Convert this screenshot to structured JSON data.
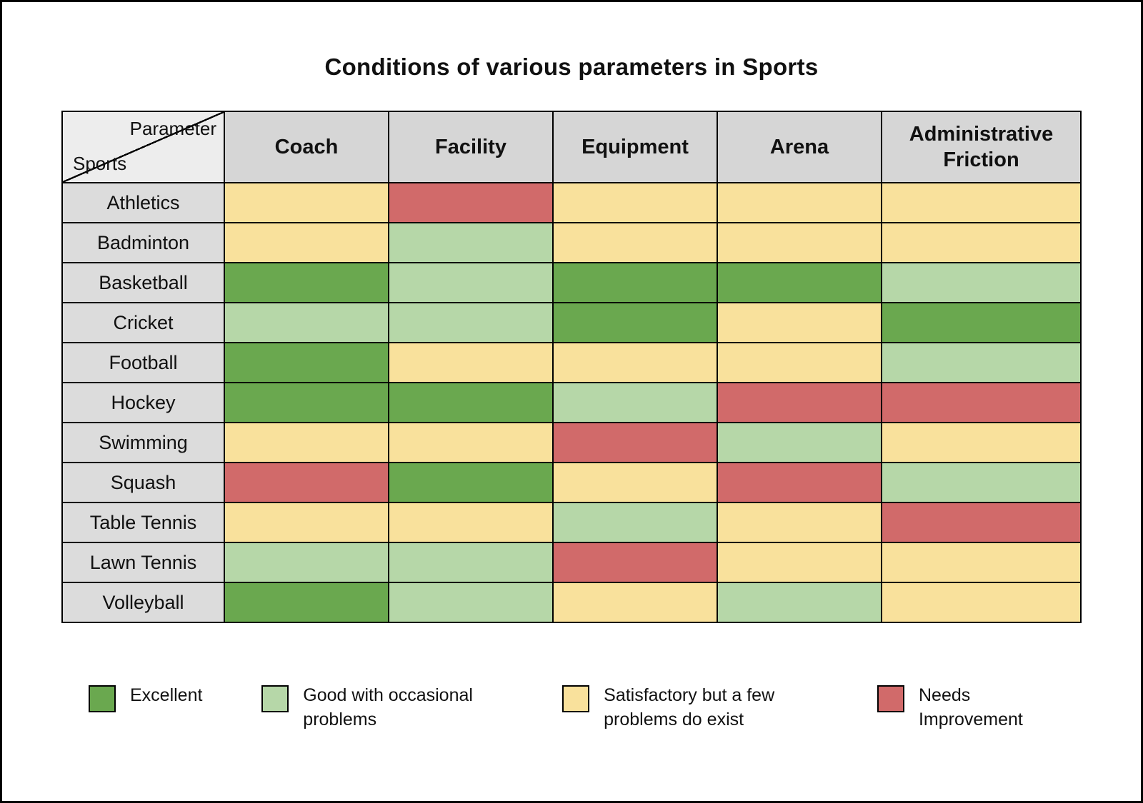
{
  "title": "Conditions of various parameters in Sports",
  "table": {
    "corner_top": "Parameter",
    "corner_bottom": "Sports"
  },
  "legend": [
    {
      "key": "excellent",
      "label": "Excellent",
      "color": "#6AA84F"
    },
    {
      "key": "good",
      "label": "Good with occasional problems",
      "color": "#B6D7A8"
    },
    {
      "key": "satisfactory",
      "label": "Satisfactory but a few problems do exist",
      "color": "#F9E19C"
    },
    {
      "key": "needs_improvement",
      "label": "Needs Improvement",
      "color": "#D16A6A"
    }
  ],
  "colors": {
    "header_bg": "#D6D6D6",
    "row_header_bg": "#DCDCDC",
    "corner_bg": "#EDEDED",
    "border": "#000000",
    "background": "#FFFFFF"
  },
  "chart_data": {
    "type": "heatmap",
    "title": "Conditions of various parameters in Sports",
    "x_categories": [
      "Coach",
      "Facility",
      "Equipment",
      "Arena",
      "Administrative Friction"
    ],
    "y_categories": [
      "Athletics",
      "Badminton",
      "Basketball",
      "Cricket",
      "Football",
      "Hockey",
      "Swimming",
      "Squash",
      "Table Tennis",
      "Lawn Tennis",
      "Volleyball"
    ],
    "values": [
      [
        "satisfactory",
        "needs_improvement",
        "satisfactory",
        "satisfactory",
        "satisfactory"
      ],
      [
        "satisfactory",
        "good",
        "satisfactory",
        "satisfactory",
        "satisfactory"
      ],
      [
        "excellent",
        "good",
        "excellent",
        "excellent",
        "good"
      ],
      [
        "good",
        "good",
        "excellent",
        "satisfactory",
        "excellent"
      ],
      [
        "excellent",
        "satisfactory",
        "satisfactory",
        "satisfactory",
        "good"
      ],
      [
        "excellent",
        "excellent",
        "good",
        "needs_improvement",
        "needs_improvement"
      ],
      [
        "satisfactory",
        "satisfactory",
        "needs_improvement",
        "good",
        "satisfactory"
      ],
      [
        "needs_improvement",
        "excellent",
        "satisfactory",
        "needs_improvement",
        "good"
      ],
      [
        "satisfactory",
        "satisfactory",
        "good",
        "satisfactory",
        "needs_improvement"
      ],
      [
        "good",
        "good",
        "needs_improvement",
        "satisfactory",
        "satisfactory"
      ],
      [
        "excellent",
        "good",
        "satisfactory",
        "good",
        "satisfactory"
      ]
    ],
    "value_labels": {
      "excellent": "Excellent",
      "good": "Good with occasional problems",
      "satisfactory": "Satisfactory but a few problems do exist",
      "needs_improvement": "Needs Improvement"
    },
    "legend_position": "bottom",
    "grid": true
  }
}
